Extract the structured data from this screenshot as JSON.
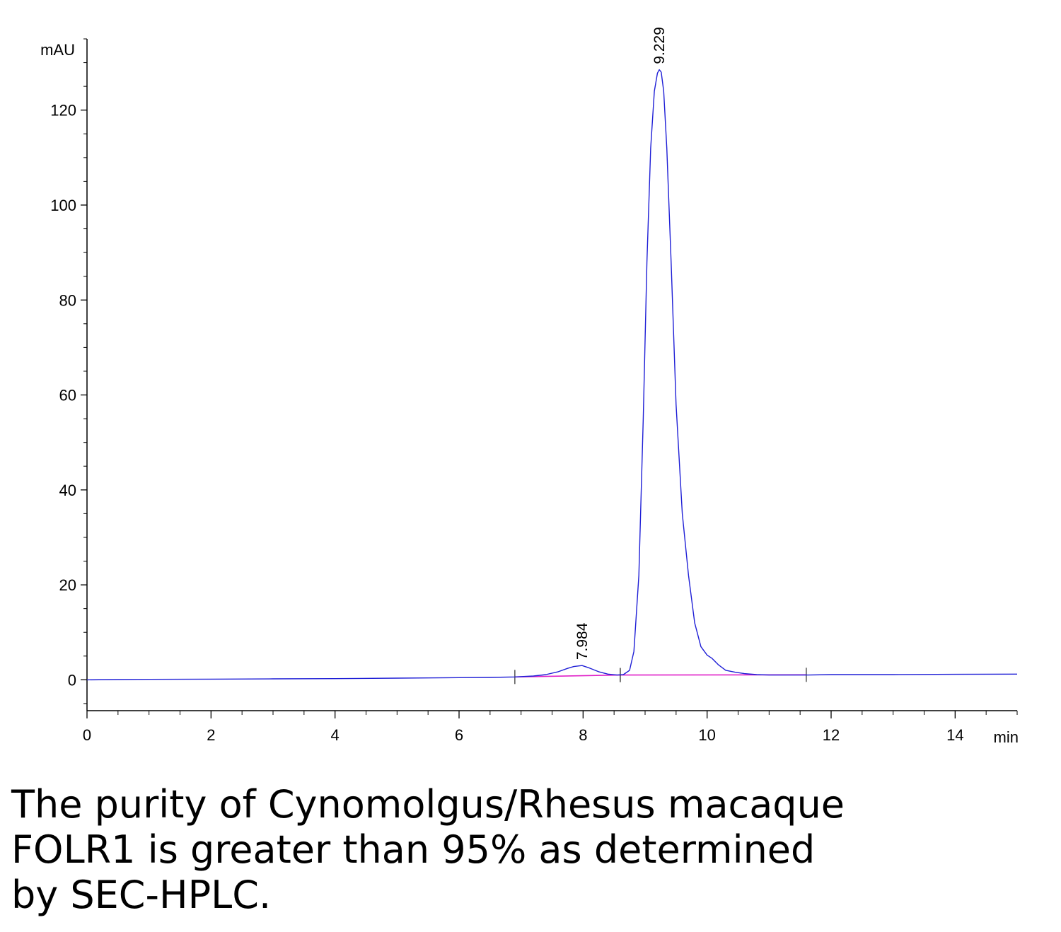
{
  "chart_data": {
    "type": "line",
    "ylabel": "mAU",
    "xlabel": "min",
    "xlim": [
      0,
      15
    ],
    "ylim": [
      -6.5,
      135
    ],
    "x_ticks": [
      0,
      2,
      4,
      6,
      8,
      10,
      12,
      14
    ],
    "y_ticks": [
      0,
      20,
      40,
      60,
      80,
      100,
      120
    ],
    "grid": false,
    "colors": {
      "trace": "#1f1fd6",
      "baseline": "#e020c8",
      "axis": "#000000"
    },
    "series": [
      {
        "x": [
          0.0,
          0.5,
          1.0,
          2.0,
          3.0,
          4.0,
          5.0,
          5.5,
          6.0,
          6.5,
          6.9,
          7.2,
          7.4,
          7.6,
          7.75,
          7.85,
          7.984,
          8.1,
          8.25,
          8.4,
          8.55,
          8.65,
          8.75,
          8.82,
          8.9,
          8.97,
          9.03,
          9.09,
          9.15,
          9.2,
          9.229,
          9.26,
          9.3,
          9.35,
          9.42,
          9.5,
          9.6,
          9.7,
          9.8,
          9.9,
          10.0,
          10.08,
          10.18,
          10.3,
          10.45,
          10.6,
          10.8,
          11.0,
          11.2,
          11.4,
          11.6,
          12.0,
          12.5,
          13.0,
          14.0,
          15.0
        ],
        "y": [
          0.0,
          0.05,
          0.1,
          0.15,
          0.2,
          0.25,
          0.35,
          0.4,
          0.45,
          0.5,
          0.6,
          0.8,
          1.1,
          1.7,
          2.4,
          2.8,
          3.0,
          2.5,
          1.7,
          1.2,
          1.0,
          1.1,
          2.0,
          6.0,
          22.0,
          55.0,
          88.0,
          112.0,
          124.0,
          127.8,
          128.5,
          128.0,
          124.0,
          112.0,
          88.0,
          58.0,
          35.0,
          22.0,
          12.0,
          7.0,
          5.2,
          4.5,
          3.2,
          2.0,
          1.6,
          1.3,
          1.1,
          1.0,
          1.0,
          1.0,
          1.0,
          1.1,
          1.1,
          1.1,
          1.15,
          1.2
        ]
      }
    ],
    "baseline_segments": [
      {
        "x": [
          6.9,
          8.6
        ],
        "y": [
          0.6,
          1.0
        ]
      },
      {
        "x": [
          8.6,
          11.6
        ],
        "y": [
          1.0,
          1.05
        ]
      }
    ],
    "peak_labels": [
      {
        "x": 7.984,
        "y": 3.0,
        "text": "7.984"
      },
      {
        "x": 9.229,
        "y": 128.5,
        "text": "9.229"
      }
    ]
  },
  "caption": {
    "line1": "The purity of Cynomolgus/Rhesus macaque",
    "line2": "FOLR1 is greater than 95% as determined",
    "line3": "by SEC-HPLC."
  }
}
